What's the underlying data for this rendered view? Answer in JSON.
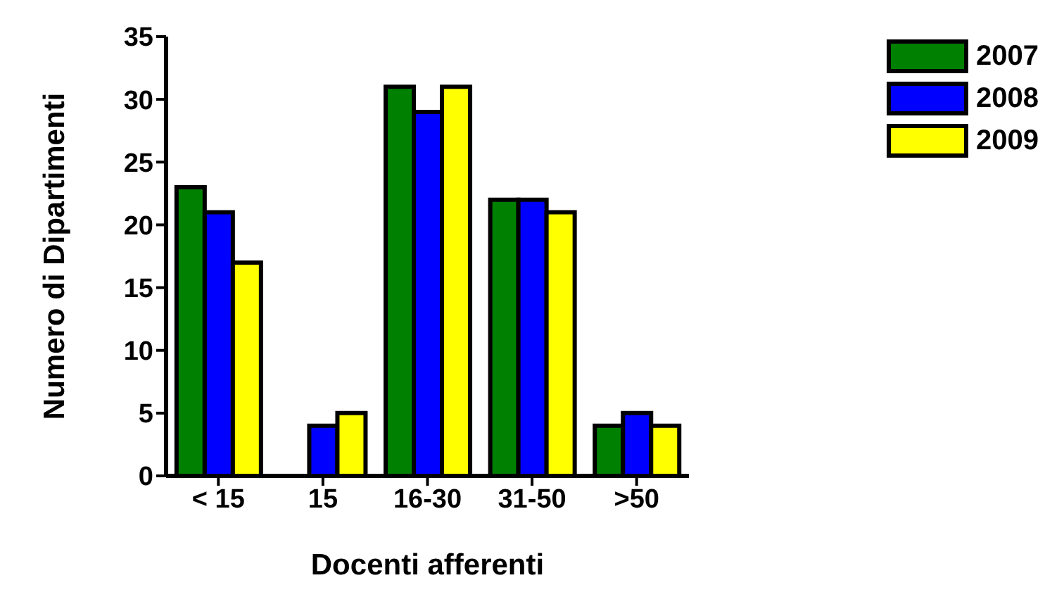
{
  "chart_data": {
    "type": "bar",
    "xlabel": "Docenti afferenti",
    "ylabel": "Numero di Dipartimenti",
    "categories": [
      "< 15",
      "15",
      "16-30",
      "31-50",
      ">50"
    ],
    "series": [
      {
        "name": "2007",
        "color": "#008000",
        "values": [
          23,
          0,
          31,
          22,
          4
        ]
      },
      {
        "name": "2008",
        "color": "#0000ff",
        "values": [
          21,
          4,
          29,
          22,
          5
        ]
      },
      {
        "name": "2009",
        "color": "#ffff00",
        "values": [
          17,
          5,
          31,
          21,
          4
        ]
      }
    ],
    "ylim": [
      0,
      35
    ],
    "yticks": [
      0,
      5,
      10,
      15,
      20,
      25,
      30,
      35
    ],
    "legend": "top right"
  }
}
